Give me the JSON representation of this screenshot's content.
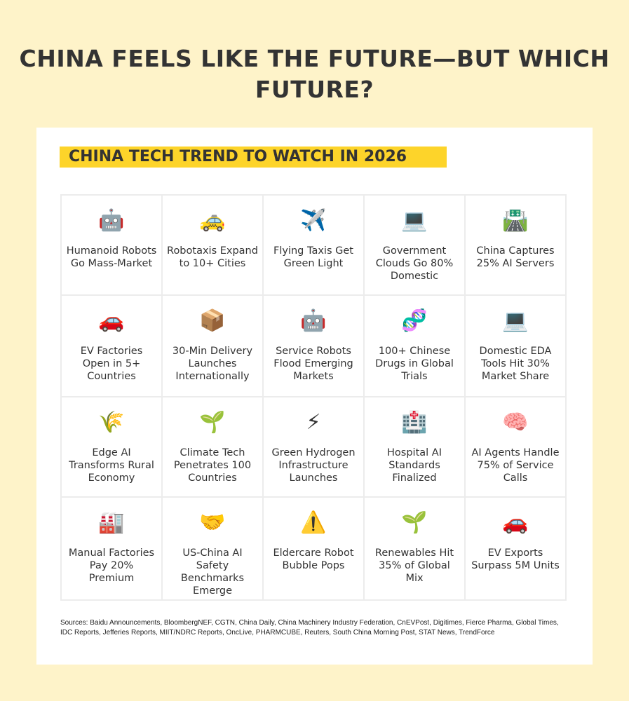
{
  "title": "CHINA FEELS LIKE THE FUTURE—BUT WHICH FUTURE?",
  "banner": "CHINA TECH TREND TO WATCH IN 2026",
  "colors": {
    "background": "#fef3c9",
    "banner": "#fdd42a",
    "text": "#333333"
  },
  "trends": [
    {
      "icon": "robot-icon",
      "glyph": "🤖",
      "label": "Humanoid Robots Go Mass-Market"
    },
    {
      "icon": "taxi-icon",
      "glyph": "🚕",
      "label": "Robotaxis Expand to 10+ Cities"
    },
    {
      "icon": "airplane-icon",
      "glyph": "✈️",
      "label": "Flying Taxis Get Green Light"
    },
    {
      "icon": "laptop-icon",
      "glyph": "💻",
      "label": "Government Clouds Go 80% Domestic"
    },
    {
      "icon": "road-icon",
      "glyph": "🛣️",
      "label": "China Captures 25% AI Servers"
    },
    {
      "icon": "car-icon",
      "glyph": "🚗",
      "label": "EV Factories Open in 5+ Countries"
    },
    {
      "icon": "package-icon",
      "glyph": "📦",
      "label": "30-Min Delivery Launches Internationally"
    },
    {
      "icon": "robot-icon",
      "glyph": "🤖",
      "label": "Service Robots Flood Emerging Markets"
    },
    {
      "icon": "dna-icon",
      "glyph": "🧬",
      "label": "100+ Chinese Drugs in Global Trials"
    },
    {
      "icon": "laptop-icon",
      "glyph": "💻",
      "label": "Domestic EDA Tools Hit 30% Market Share"
    },
    {
      "icon": "wheat-icon",
      "glyph": "🌾",
      "label": "Edge AI Transforms Rural Economy"
    },
    {
      "icon": "seedling-icon",
      "glyph": "🌱",
      "label": "Climate Tech Penetrates 100 Countries"
    },
    {
      "icon": "lightning-icon",
      "glyph": "⚡",
      "label": "Green Hydrogen Infrastructure Launches"
    },
    {
      "icon": "hospital-icon",
      "glyph": "🏥",
      "label": "Hospital AI Standards Finalized"
    },
    {
      "icon": "brain-icon",
      "glyph": "🧠",
      "label": "AI Agents Handle 75% of Service Calls"
    },
    {
      "icon": "factory-icon",
      "glyph": "🏭",
      "label": "Manual Factories Pay 20% Premium"
    },
    {
      "icon": "handshake-icon",
      "glyph": "🤝",
      "label": "US-China AI Safety Benchmarks Emerge"
    },
    {
      "icon": "warning-icon",
      "glyph": "⚠️",
      "label": "Eldercare Robot Bubble Pops"
    },
    {
      "icon": "seedling-icon",
      "glyph": "🌱",
      "label": "Renewables Hit 35% of Global Mix"
    },
    {
      "icon": "car-icon",
      "glyph": "🚗",
      "label": "EV Exports Surpass 5M Units"
    }
  ],
  "sources": "Sources: Baidu Announcements, BloombergNEF, CGTN, China Daily, China Machinery Industry Federation, CnEVPost, Digitimes, Fierce Pharma, Global Times, IDC Reports, Jefferies Reports, MIIT/NDRC Reports, OncLive, PHARMCUBE, Reuters, South China Morning Post, STAT News, TrendForce"
}
